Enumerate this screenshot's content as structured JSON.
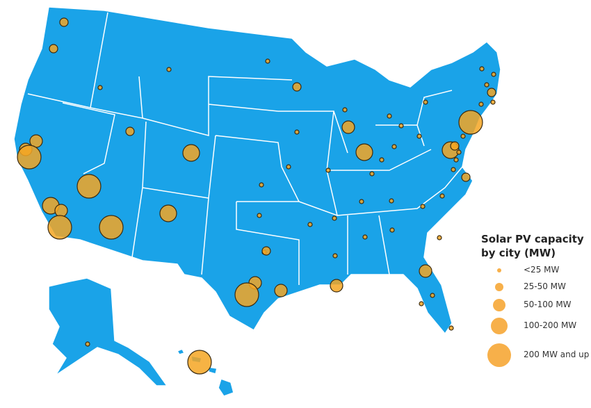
{
  "legend": {
    "title": "Solar PV capacity by city (MW)",
    "items": [
      "<25 MW",
      "25-50 MW",
      "50-100 MW",
      "100-200 MW",
      "200 MW and up"
    ]
  }
}
